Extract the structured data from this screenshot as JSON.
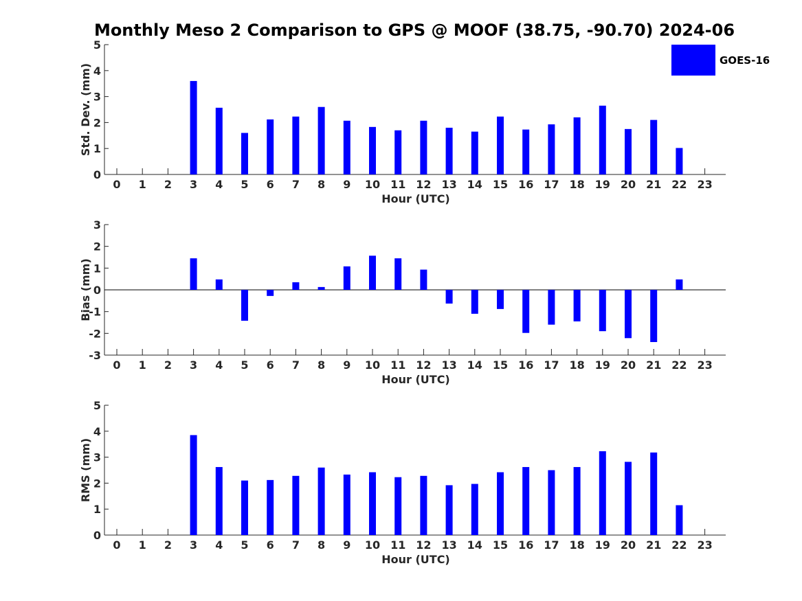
{
  "title": "Monthly Meso 2 Comparison to GPS @ MOOF (38.75, -90.70) 2024-06",
  "legend": {
    "label": "GOES-16",
    "color": "#0000ff"
  },
  "chart_data": [
    {
      "type": "bar",
      "ylabel": "Std. Dev. (mm)",
      "xlabel": "Hour (UTC)",
      "ylim": [
        0,
        5
      ],
      "yticks": [
        0,
        1,
        2,
        3,
        4,
        5
      ],
      "categories": [
        "0",
        "1",
        "2",
        "3",
        "4",
        "5",
        "6",
        "7",
        "8",
        "9",
        "10",
        "11",
        "12",
        "13",
        "14",
        "15",
        "16",
        "17",
        "18",
        "19",
        "20",
        "21",
        "22",
        "23"
      ],
      "series": [
        {
          "name": "GOES-16",
          "values": [
            null,
            null,
            null,
            3.6,
            2.57,
            1.6,
            2.12,
            2.23,
            2.6,
            2.07,
            1.83,
            1.7,
            2.07,
            1.8,
            1.65,
            2.23,
            1.73,
            1.93,
            2.2,
            2.65,
            1.75,
            2.1,
            1.02,
            null
          ]
        }
      ]
    },
    {
      "type": "bar",
      "ylabel": "Bias (mm)",
      "xlabel": "Hour (UTC)",
      "ylim": [
        -3,
        3
      ],
      "yticks": [
        -3,
        -2,
        -1,
        0,
        1,
        2,
        3
      ],
      "categories": [
        "0",
        "1",
        "2",
        "3",
        "4",
        "5",
        "6",
        "7",
        "8",
        "9",
        "10",
        "11",
        "12",
        "13",
        "14",
        "15",
        "16",
        "17",
        "18",
        "19",
        "20",
        "21",
        "22",
        "23"
      ],
      "series": [
        {
          "name": "GOES-16",
          "values": [
            null,
            null,
            null,
            1.45,
            0.48,
            -1.42,
            -0.28,
            0.35,
            0.13,
            1.08,
            1.57,
            1.45,
            0.93,
            -0.63,
            -1.1,
            -0.88,
            -1.98,
            -1.6,
            -1.45,
            -1.9,
            -2.22,
            -2.4,
            0.48,
            null
          ]
        }
      ]
    },
    {
      "type": "bar",
      "ylabel": "RMS (mm)",
      "xlabel": "Hour (UTC)",
      "ylim": [
        0,
        5
      ],
      "yticks": [
        0,
        1,
        2,
        3,
        4,
        5
      ],
      "categories": [
        "0",
        "1",
        "2",
        "3",
        "4",
        "5",
        "6",
        "7",
        "8",
        "9",
        "10",
        "11",
        "12",
        "13",
        "14",
        "15",
        "16",
        "17",
        "18",
        "19",
        "20",
        "21",
        "22",
        "23"
      ],
      "series": [
        {
          "name": "GOES-16",
          "values": [
            null,
            null,
            null,
            3.85,
            2.62,
            2.1,
            2.12,
            2.28,
            2.6,
            2.33,
            2.42,
            2.23,
            2.28,
            1.92,
            1.97,
            2.42,
            2.62,
            2.5,
            2.62,
            3.23,
            2.82,
            3.18,
            1.15,
            null
          ]
        }
      ]
    }
  ]
}
